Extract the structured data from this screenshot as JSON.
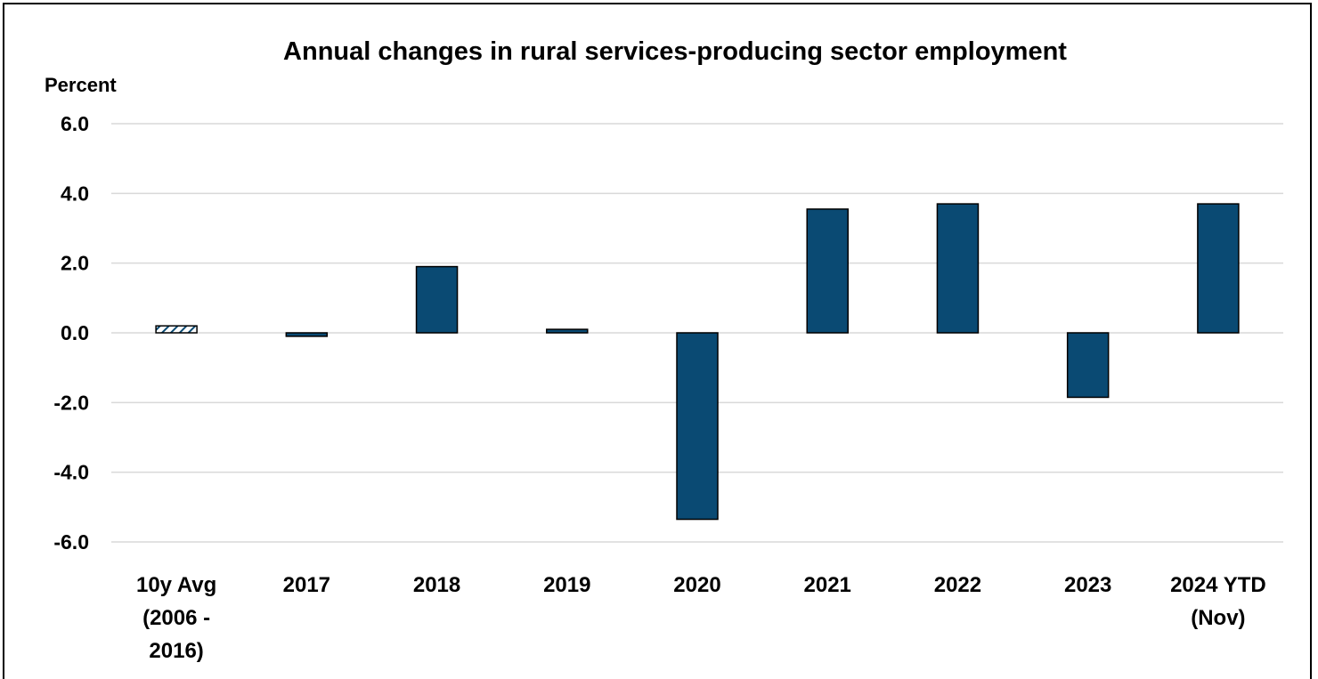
{
  "chart_data": {
    "type": "bar",
    "title": "Annual changes in rural services-producing sector employment",
    "ylabel": "Percent",
    "xlabel": "",
    "ylim": [
      -6.0,
      6.0
    ],
    "yticks": [
      "6.0",
      "4.0",
      "2.0",
      "0.0",
      "-2.0",
      "-4.0",
      "-6.0"
    ],
    "ytick_values": [
      6,
      4,
      2,
      0,
      -2,
      -4,
      -6
    ],
    "grid": "horizontal",
    "categories": [
      [
        "10y Avg",
        "(2006 -",
        "2016)"
      ],
      [
        "2017"
      ],
      [
        "2018"
      ],
      [
        "2019"
      ],
      [
        "2020"
      ],
      [
        "2021"
      ],
      [
        "2022"
      ],
      [
        "2023"
      ],
      [
        "2024 YTD",
        "(Nov)"
      ]
    ],
    "values": [
      0.2,
      -0.1,
      1.9,
      0.1,
      -5.35,
      3.55,
      3.7,
      -1.85,
      3.7
    ],
    "patterns": [
      "hatched",
      "solid",
      "solid",
      "solid",
      "solid",
      "solid",
      "solid",
      "solid",
      "solid"
    ],
    "colors": {
      "bar_fill": "#0a4a73",
      "bar_stroke": "#000000",
      "hatch_fill": "#ffffff",
      "grid": "#d9d9d9",
      "text": "#000000"
    }
  }
}
